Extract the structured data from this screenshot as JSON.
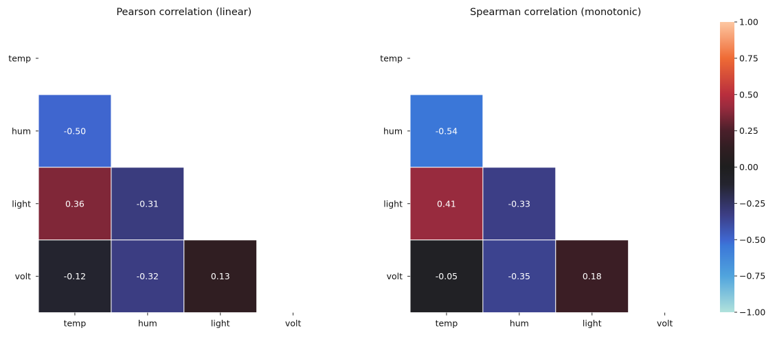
{
  "chart_data": {
    "type": "heatmap",
    "variables": [
      "temp",
      "hum",
      "light",
      "volt"
    ],
    "value_range": [
      -1,
      1
    ],
    "mask": "upper-triangle-including-diagonal",
    "annotated": true,
    "annotation_format": "0.00",
    "panels": [
      {
        "title": "Pearson correlation (linear)",
        "cells": [
          {
            "row": "hum",
            "col": "temp",
            "value": -0.5,
            "label": "-0.50"
          },
          {
            "row": "light",
            "col": "temp",
            "value": 0.36,
            "label": "0.36"
          },
          {
            "row": "light",
            "col": "hum",
            "value": -0.31,
            "label": "-0.31"
          },
          {
            "row": "volt",
            "col": "temp",
            "value": -0.12,
            "label": "-0.12"
          },
          {
            "row": "volt",
            "col": "hum",
            "value": -0.32,
            "label": "-0.32"
          },
          {
            "row": "volt",
            "col": "light",
            "value": 0.13,
            "label": "0.13"
          }
        ]
      },
      {
        "title": "Spearman correlation (monotonic)",
        "cells": [
          {
            "row": "hum",
            "col": "temp",
            "value": -0.54,
            "label": "-0.54"
          },
          {
            "row": "light",
            "col": "temp",
            "value": 0.41,
            "label": "0.41"
          },
          {
            "row": "light",
            "col": "hum",
            "value": -0.33,
            "label": "-0.33"
          },
          {
            "row": "volt",
            "col": "temp",
            "value": -0.05,
            "label": "-0.05"
          },
          {
            "row": "volt",
            "col": "hum",
            "value": -0.35,
            "label": "-0.35"
          },
          {
            "row": "volt",
            "col": "light",
            "value": 0.18,
            "label": "0.18"
          }
        ]
      }
    ],
    "colorbar": {
      "ticks": [
        1.0,
        0.75,
        0.5,
        0.25,
        0.0,
        -0.25,
        -0.5,
        -0.75,
        -1.0
      ],
      "tick_labels": [
        "1.00",
        "0.75",
        "0.50",
        "0.25",
        "0.00",
        "−0.25",
        "−0.50",
        "−0.75",
        "−1.00"
      ],
      "colormap": "icefire",
      "color_stops": [
        {
          "v": -1.0,
          "c": "#b1e2dc"
        },
        {
          "v": -0.75,
          "c": "#50a4dd"
        },
        {
          "v": -0.54,
          "c": "#3b77d8"
        },
        {
          "v": -0.5,
          "c": "#3f66cf"
        },
        {
          "v": -0.33,
          "c": "#3c3e86"
        },
        {
          "v": -0.12,
          "c": "#24242f"
        },
        {
          "v": 0.0,
          "c": "#1e1e1e"
        },
        {
          "v": 0.13,
          "c": "#301e22"
        },
        {
          "v": 0.25,
          "c": "#4a1f2a"
        },
        {
          "v": 0.41,
          "c": "#982b3e"
        },
        {
          "v": 0.5,
          "c": "#b92e3d"
        },
        {
          "v": 0.75,
          "c": "#ef6b35"
        },
        {
          "v": 1.0,
          "c": "#fdc7a2"
        }
      ]
    }
  }
}
